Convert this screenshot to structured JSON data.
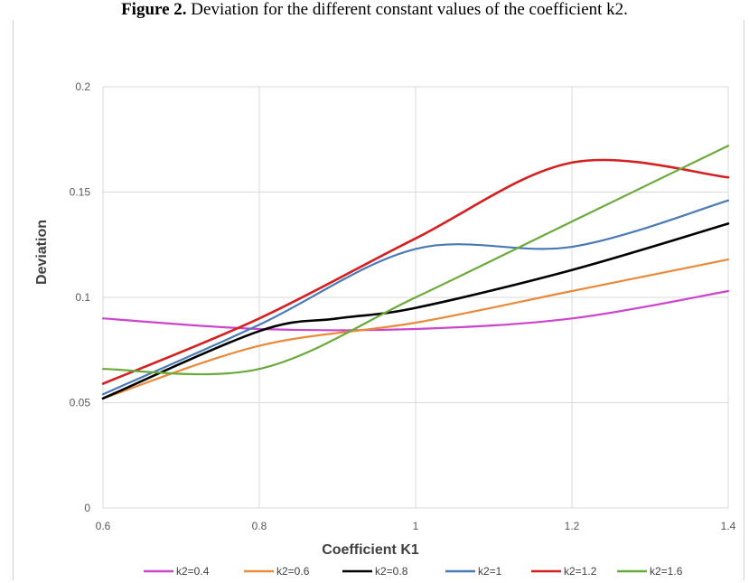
{
  "caption": {
    "label": "Figure 2.",
    "text": " Deviation for the different constant values of the coefficient k2."
  },
  "chart_data": {
    "type": "line",
    "title": "",
    "xlabel": "Coefficient K1",
    "ylabel": "Deviation",
    "xlim": [
      0.6,
      1.4
    ],
    "ylim": [
      0,
      0.2
    ],
    "x_ticks": [
      "0.6",
      "0.8",
      "1",
      "1.2",
      "1.4"
    ],
    "y_ticks": [
      "0",
      "0.05",
      "0.1",
      "0.15",
      "0.2"
    ],
    "grid": true,
    "legend_position": "bottom",
    "series": [
      {
        "name": "k2=0.4",
        "color": "#cc44cc",
        "x": [
          0.6,
          0.8,
          1.0,
          1.2,
          1.4
        ],
        "y": [
          0.09,
          0.085,
          0.085,
          0.09,
          0.103
        ]
      },
      {
        "name": "k2=0.6",
        "color": "#e88a3a",
        "x": [
          0.6,
          0.8,
          1.0,
          1.2,
          1.4
        ],
        "y": [
          0.052,
          0.077,
          0.088,
          0.103,
          0.118
        ]
      },
      {
        "name": "k2=0.8",
        "color": "#000000",
        "x": [
          0.6,
          0.8,
          0.9,
          1.0,
          1.2,
          1.4
        ],
        "y": [
          0.052,
          0.084,
          0.09,
          0.095,
          0.113,
          0.135
        ]
      },
      {
        "name": "k2=1",
        "color": "#4a7ab5",
        "x": [
          0.6,
          0.8,
          1.0,
          1.2,
          1.4
        ],
        "y": [
          0.054,
          0.087,
          0.123,
          0.124,
          0.146
        ]
      },
      {
        "name": "k2=1.2",
        "color": "#d42020",
        "x": [
          0.6,
          0.8,
          1.0,
          1.2,
          1.4
        ],
        "y": [
          0.059,
          0.09,
          0.128,
          0.164,
          0.157
        ]
      },
      {
        "name": "k2=1.6",
        "color": "#6aaa3a",
        "x": [
          0.6,
          0.8,
          1.0,
          1.2,
          1.4
        ],
        "y": [
          0.066,
          0.066,
          0.1,
          0.136,
          0.172
        ]
      }
    ]
  }
}
